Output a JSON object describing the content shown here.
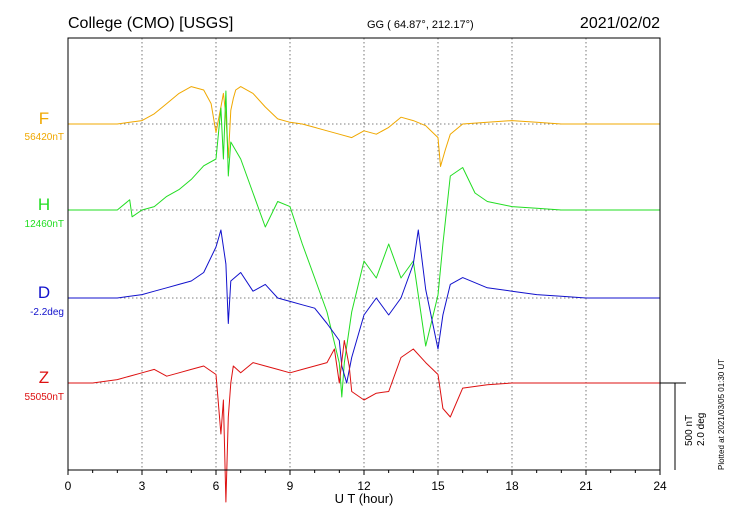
{
  "header": {
    "station": "College (CMO)  [USGS]",
    "coords": "GG ( 64.87°, 212.17°)",
    "date": "2021/02/02"
  },
  "side_note": "Plotted at 2021/03/05 01:30 UT",
  "scale_bar": {
    "top_label": "500 nT",
    "bottom_label": "2.0 deg"
  },
  "chart_data": {
    "type": "line",
    "xlabel": "U T (hour)",
    "xlim": [
      0,
      24
    ],
    "xticks": [
      "0",
      "3",
      "6",
      "9",
      "12",
      "15",
      "18",
      "21",
      "24"
    ],
    "grid": true,
    "series": [
      {
        "name": "F",
        "baseline_label": "56420nT",
        "color": "#f0a800",
        "x": [
          0,
          1,
          2,
          2.5,
          3,
          3.5,
          4,
          4.5,
          5,
          5.5,
          5.8,
          6,
          6.2,
          6.3,
          6.4,
          6.5,
          6.6,
          6.7,
          6.8,
          7,
          7.5,
          8,
          8.5,
          9,
          9.5,
          10,
          10.5,
          11,
          11.5,
          12,
          12.5,
          13,
          13.5,
          14,
          14.5,
          15,
          15.1,
          15.3,
          15.5,
          16,
          17,
          18,
          19,
          20,
          21,
          22,
          23,
          24
        ],
        "y": [
          0,
          0,
          0,
          10,
          20,
          60,
          120,
          180,
          220,
          200,
          120,
          -50,
          100,
          180,
          50,
          -200,
          80,
          150,
          200,
          220,
          180,
          100,
          30,
          10,
          0,
          -20,
          -40,
          -60,
          -80,
          -40,
          -60,
          -20,
          40,
          20,
          -10,
          -80,
          -250,
          -150,
          -60,
          0,
          10,
          20,
          10,
          0,
          0,
          0,
          0,
          0
        ]
      },
      {
        "name": "H",
        "baseline_label": "12460nT",
        "color": "#22dd22",
        "x": [
          0,
          1,
          2,
          2.5,
          2.6,
          3,
          3.5,
          4,
          4.5,
          5,
          5.5,
          6,
          6.2,
          6.3,
          6.4,
          6.5,
          6.6,
          7,
          7.5,
          8,
          8.5,
          9,
          9.5,
          10,
          10.5,
          11,
          11.1,
          11.2,
          11.5,
          12,
          12.5,
          13,
          13.5,
          14,
          14.5,
          15,
          15.2,
          15.5,
          16,
          16.5,
          17,
          18,
          19,
          20,
          21,
          22,
          23,
          24
        ],
        "y": [
          0,
          0,
          0,
          60,
          -40,
          0,
          20,
          80,
          120,
          180,
          260,
          300,
          600,
          300,
          700,
          200,
          400,
          300,
          100,
          -100,
          50,
          20,
          -200,
          -400,
          -600,
          -900,
          -1100,
          -900,
          -600,
          -300,
          -400,
          -200,
          -400,
          -300,
          -800,
          -500,
          -200,
          200,
          250,
          100,
          50,
          20,
          10,
          0,
          0,
          0,
          0,
          0
        ]
      },
      {
        "name": "D",
        "baseline_label": "-2.2deg",
        "color": "#1111cc",
        "x": [
          0,
          1,
          2,
          3,
          3.5,
          4,
          4.5,
          5,
          5.5,
          6,
          6.2,
          6.4,
          6.5,
          6.6,
          7,
          7.5,
          8,
          8.5,
          9,
          9.5,
          10,
          10.5,
          11,
          11.1,
          11.3,
          11.5,
          12,
          12.5,
          13,
          13.5,
          14,
          14.2,
          14.5,
          15,
          15.2,
          15.5,
          16,
          17,
          18,
          19,
          20,
          21,
          22,
          23,
          24
        ],
        "y": [
          0,
          0,
          0,
          20,
          40,
          60,
          80,
          100,
          150,
          300,
          400,
          200,
          -150,
          100,
          150,
          40,
          80,
          0,
          -20,
          -40,
          -60,
          -150,
          -250,
          -400,
          -500,
          -350,
          -100,
          0,
          -100,
          0,
          200,
          400,
          50,
          -300,
          -100,
          80,
          120,
          60,
          40,
          20,
          10,
          0,
          0,
          0,
          0
        ]
      },
      {
        "name": "Z",
        "baseline_label": "55050nT",
        "color": "#dd1111",
        "x": [
          0,
          1,
          2,
          3,
          3.5,
          4,
          4.5,
          5,
          5.5,
          6,
          6.2,
          6.3,
          6.4,
          6.5,
          6.6,
          6.7,
          7,
          7.5,
          8,
          8.5,
          9,
          9.5,
          10,
          10.5,
          10.8,
          11,
          11.2,
          11.4,
          11.5,
          12,
          12.5,
          13,
          13.5,
          14,
          14.5,
          15,
          15.2,
          15.5,
          16,
          17,
          18,
          19,
          20,
          21,
          22,
          23,
          24
        ],
        "y": [
          0,
          0,
          20,
          60,
          80,
          40,
          60,
          80,
          100,
          50,
          -300,
          -100,
          -700,
          -200,
          0,
          100,
          60,
          120,
          100,
          80,
          60,
          80,
          100,
          120,
          200,
          0,
          250,
          100,
          -50,
          -100,
          -60,
          -50,
          150,
          200,
          120,
          50,
          -150,
          -200,
          -30,
          -10,
          0,
          0,
          0,
          0,
          0,
          0,
          0
        ]
      }
    ]
  }
}
